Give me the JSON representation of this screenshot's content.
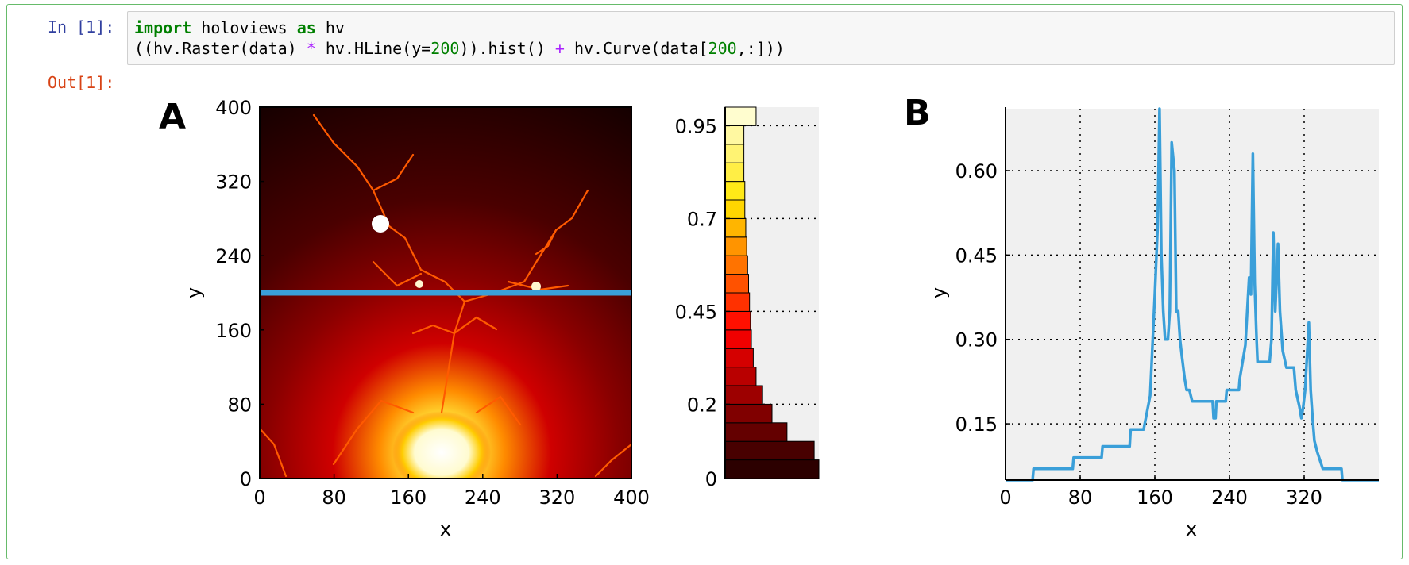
{
  "notebook": {
    "in_prompt": "In [1]:",
    "out_prompt": "Out[1]:",
    "code": {
      "line1": {
        "kw_import": "import",
        "module": " holoviews ",
        "kw_as": "as",
        "alias": " hv"
      },
      "line2": {
        "p1": "((hv.Raster(data) ",
        "op_mul": "*",
        "p2": " hv.HLine(y=",
        "num_a": "20",
        "num_b": "0",
        "p3": ")).hist() ",
        "op_add": "+",
        "p4": " hv.Curve(data[",
        "num_c": "200",
        "p5": ",:]))"
      }
    }
  },
  "colors": {
    "cell_border": "#66bb6a",
    "in_prompt": "#303f9f",
    "out_prompt": "#d84315",
    "hline": "#3a9fd9",
    "curve": "#3a9fd9",
    "axes_bg": "#f0f0f0"
  },
  "panels": {
    "a_label": "A",
    "b_label": "B"
  },
  "chart_data": [
    {
      "type": "heatmap",
      "description_free": true,
      "xlabel": "x",
      "ylabel": "y",
      "xlim": [
        0,
        400
      ],
      "ylim": [
        0,
        400
      ],
      "xticks": [
        "0",
        "80",
        "160",
        "240",
        "320",
        "400"
      ],
      "yticks": [
        "0",
        "80",
        "160",
        "240",
        "320",
        "400"
      ],
      "hline_y": 200,
      "colormap": "hot"
    },
    {
      "type": "bar",
      "orientation": "horizontal",
      "yticks": [
        "0",
        "0.2",
        "0.45",
        "0.7",
        "0.95"
      ],
      "ylim": [
        0,
        1
      ],
      "grid": true,
      "bins": [
        {
          "y0": 0.0,
          "y1": 0.05,
          "count": 100
        },
        {
          "y0": 0.05,
          "y1": 0.1,
          "count": 95
        },
        {
          "y0": 0.1,
          "y1": 0.15,
          "count": 66
        },
        {
          "y0": 0.15,
          "y1": 0.2,
          "count": 50
        },
        {
          "y0": 0.2,
          "y1": 0.25,
          "count": 40
        },
        {
          "y0": 0.25,
          "y1": 0.3,
          "count": 33
        },
        {
          "y0": 0.3,
          "y1": 0.35,
          "count": 30
        },
        {
          "y0": 0.35,
          "y1": 0.4,
          "count": 28
        },
        {
          "y0": 0.4,
          "y1": 0.45,
          "count": 27
        },
        {
          "y0": 0.45,
          "y1": 0.5,
          "count": 26
        },
        {
          "y0": 0.5,
          "y1": 0.55,
          "count": 25
        },
        {
          "y0": 0.55,
          "y1": 0.6,
          "count": 24
        },
        {
          "y0": 0.6,
          "y1": 0.65,
          "count": 23
        },
        {
          "y0": 0.65,
          "y1": 0.7,
          "count": 22
        },
        {
          "y0": 0.7,
          "y1": 0.75,
          "count": 21
        },
        {
          "y0": 0.75,
          "y1": 0.8,
          "count": 21
        },
        {
          "y0": 0.8,
          "y1": 0.85,
          "count": 20
        },
        {
          "y0": 0.85,
          "y1": 0.9,
          "count": 20
        },
        {
          "y0": 0.9,
          "y1": 0.95,
          "count": 20
        },
        {
          "y0": 0.95,
          "y1": 1.0,
          "count": 33
        }
      ]
    },
    {
      "type": "line",
      "xlabel": "x",
      "ylabel": "y",
      "xlim": [
        0,
        400
      ],
      "ylim": [
        0.05,
        0.71
      ],
      "xticks": [
        "0",
        "80",
        "160",
        "240",
        "320"
      ],
      "yticks": [
        "0.15",
        "0.30",
        "0.45",
        "0.60"
      ],
      "grid": true,
      "series": [
        {
          "x": [
            0,
            29,
            30,
            72,
            73,
            103,
            104,
            133,
            134,
            148,
            155,
            160,
            163,
            165,
            167,
            169,
            171,
            174,
            176,
            178,
            181,
            183,
            185,
            187,
            189,
            192,
            194,
            197,
            200,
            211,
            222,
            223,
            225,
            226,
            236,
            237,
            250,
            251,
            257,
            259,
            261,
            263,
            265,
            267,
            269,
            270,
            272,
            275,
            283,
            285,
            287,
            289,
            292,
            294,
            297,
            301,
            309,
            311,
            315,
            317,
            319,
            321,
            325,
            327,
            329,
            331,
            334,
            336,
            340,
            350,
            360,
            361,
            368,
            369,
            400
          ],
          "y": [
            0.05,
            0.05,
            0.07,
            0.07,
            0.09,
            0.09,
            0.11,
            0.11,
            0.14,
            0.14,
            0.2,
            0.38,
            0.5,
            0.72,
            0.45,
            0.35,
            0.3,
            0.3,
            0.35,
            0.65,
            0.6,
            0.35,
            0.35,
            0.3,
            0.27,
            0.23,
            0.21,
            0.21,
            0.19,
            0.19,
            0.19,
            0.16,
            0.16,
            0.19,
            0.19,
            0.21,
            0.21,
            0.23,
            0.29,
            0.35,
            0.41,
            0.38,
            0.63,
            0.4,
            0.3,
            0.26,
            0.26,
            0.26,
            0.26,
            0.3,
            0.49,
            0.35,
            0.47,
            0.35,
            0.28,
            0.25,
            0.25,
            0.21,
            0.18,
            0.16,
            0.18,
            0.21,
            0.33,
            0.21,
            0.16,
            0.12,
            0.1,
            0.09,
            0.07,
            0.07,
            0.07,
            0.05,
            0.05,
            0.05,
            0.05
          ]
        }
      ]
    }
  ]
}
